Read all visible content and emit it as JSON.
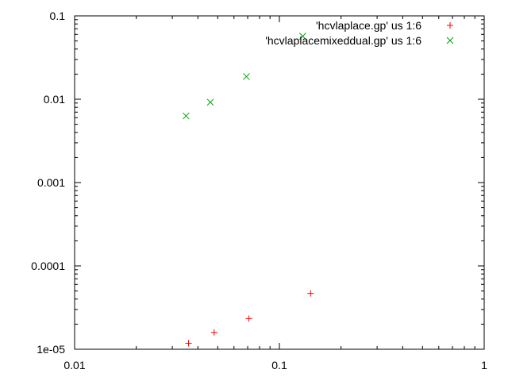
{
  "chart_data": {
    "type": "scatter",
    "xscale": "log",
    "yscale": "log",
    "xlim": [
      0.01,
      1
    ],
    "ylim": [
      1e-05,
      0.1
    ],
    "grid": false,
    "legend_position": "top-right",
    "x_ticks": [
      "0.01",
      "0.1",
      "1"
    ],
    "y_ticks": [
      "1e-05",
      "0.0001",
      "0.001",
      "0.01",
      "0.1"
    ],
    "x_tick_values": [
      0.01,
      0.1,
      1
    ],
    "y_tick_values": [
      1e-05,
      0.0001,
      0.001,
      0.01,
      0.1
    ],
    "series": [
      {
        "name": "'hcvlaplace.gp' us 1:6",
        "marker": "plus",
        "color": "#ff0000",
        "points": [
          {
            "x": 0.036,
            "y": 1.18e-05
          },
          {
            "x": 0.048,
            "y": 1.59e-05
          },
          {
            "x": 0.071,
            "y": 2.33e-05
          },
          {
            "x": 0.142,
            "y": 4.68e-05
          }
        ]
      },
      {
        "name": "'hcvlaplacemixeddual.gp' us 1:6",
        "marker": "cross",
        "color": "#00a000",
        "points": [
          {
            "x": 0.035,
            "y": 0.0063
          },
          {
            "x": 0.046,
            "y": 0.0092
          },
          {
            "x": 0.069,
            "y": 0.0187
          },
          {
            "x": 0.13,
            "y": 0.057
          }
        ]
      }
    ]
  }
}
